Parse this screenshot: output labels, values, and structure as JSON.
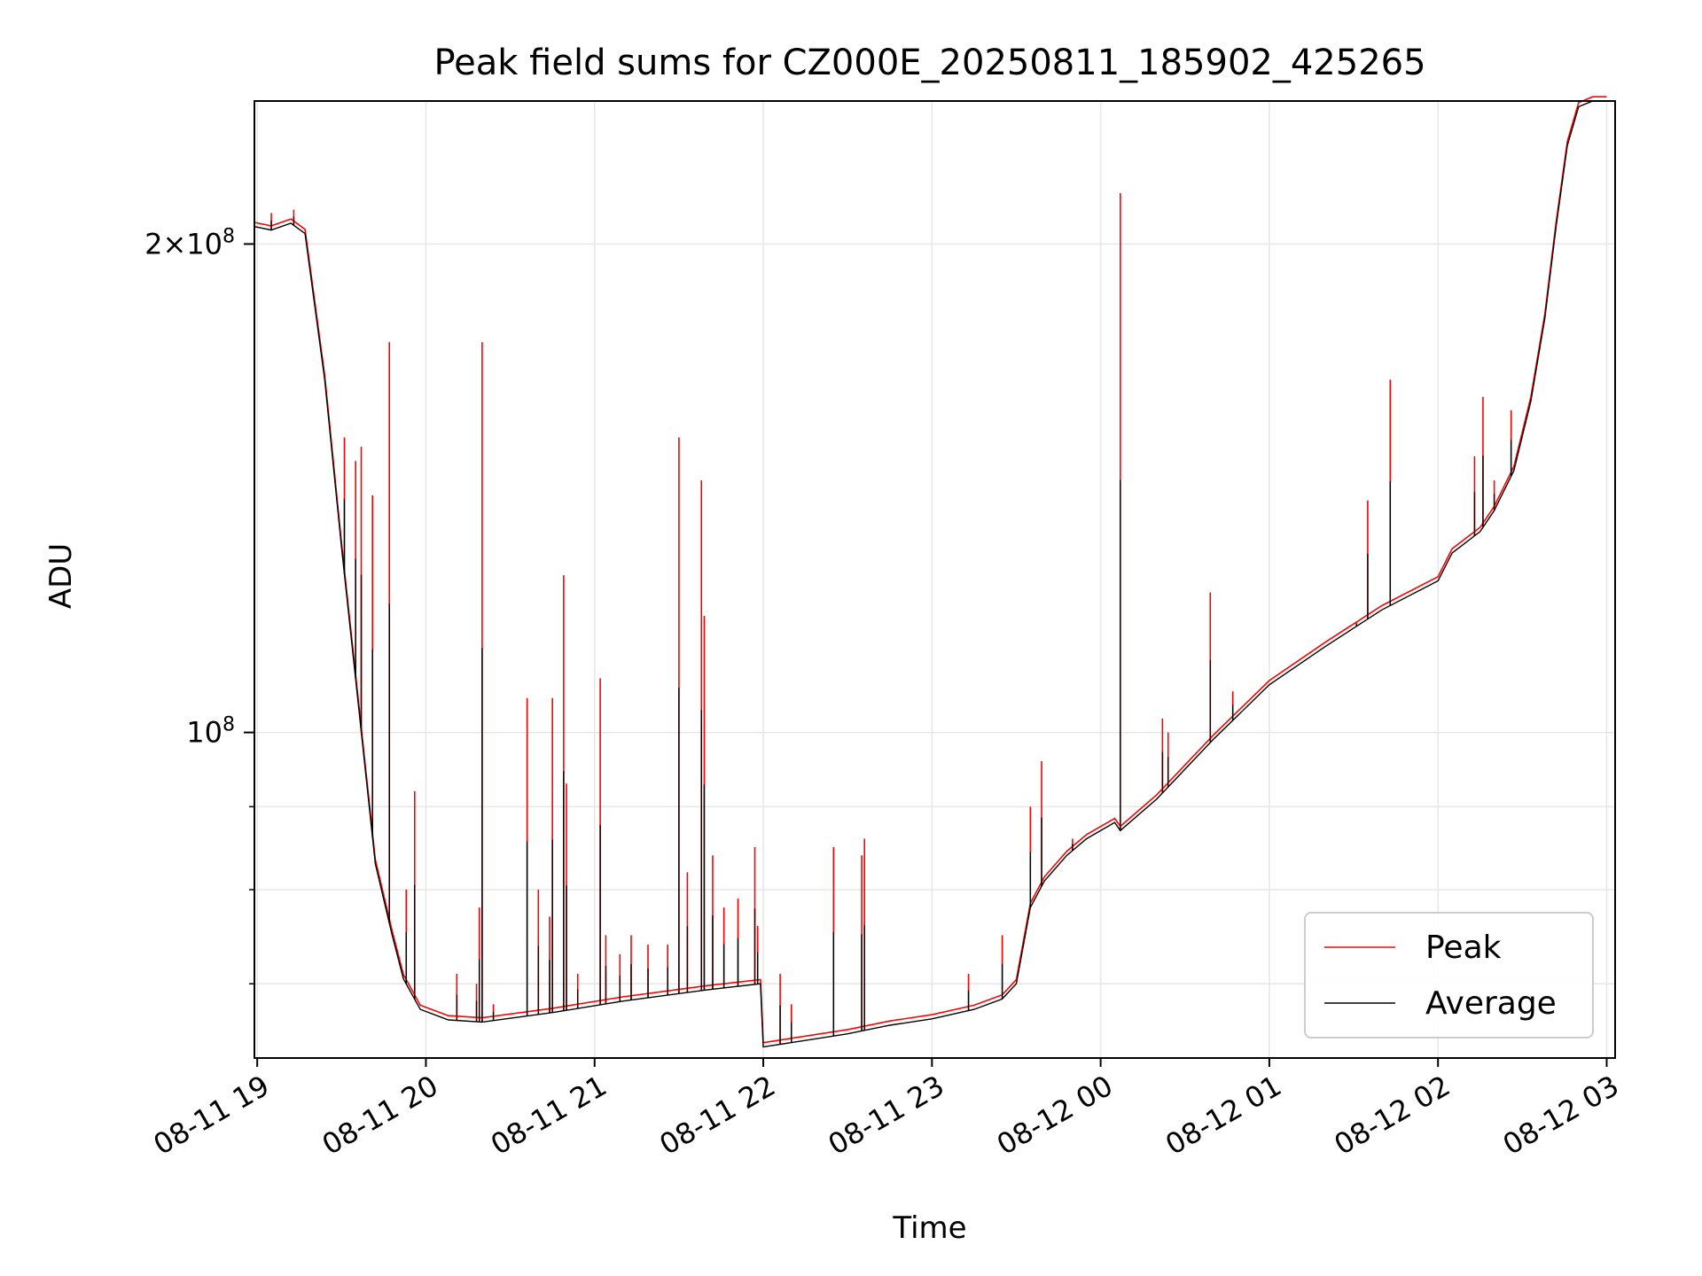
{
  "chart_data": {
    "type": "line",
    "title": "Peak field sums for CZ000E_20250811_185902_425265",
    "xlabel": "Time",
    "ylabel": "ADU",
    "y_scale": "log",
    "xlim": [
      "2025-08-11T18:59",
      "2025-08-12T03:03"
    ],
    "ylim": [
      63000000,
      245000000
    ],
    "x_ticks": [
      "08-11 19",
      "08-11 20",
      "08-11 21",
      "08-11 22",
      "08-11 23",
      "08-12 00",
      "08-12 01",
      "08-12 02",
      "08-12 03"
    ],
    "y_ticks": [
      {
        "value": 200000000,
        "mant": "2",
        "exp": "8"
      },
      {
        "value": 100000000,
        "mant": "",
        "exp": "8"
      }
    ],
    "grid": true,
    "legend": {
      "placement": "lower-right",
      "entries": [
        "Peak",
        "Average"
      ]
    },
    "colors": {
      "Peak": "#ff0000",
      "Average": "#000000",
      "grid": "#e6e6e6"
    },
    "series": [
      {
        "name": "Average",
        "color": "#000000",
        "points": [
          [
            "2025-08-11T18:59",
            205000000
          ],
          [
            "2025-08-11T19:05",
            204000000
          ],
          [
            "2025-08-11T19:12",
            206000000
          ],
          [
            "2025-08-11T19:17",
            203000000
          ],
          [
            "2025-08-11T19:24",
            165000000
          ],
          [
            "2025-08-11T19:30",
            130000000
          ],
          [
            "2025-08-11T19:36",
            104000000
          ],
          [
            "2025-08-11T19:42",
            83000000
          ],
          [
            "2025-08-11T19:48",
            75000000
          ],
          [
            "2025-08-11T19:52",
            70500000
          ],
          [
            "2025-08-11T19:58",
            67500000
          ],
          [
            "2025-08-11T20:08",
            66500000
          ],
          [
            "2025-08-11T20:20",
            66300000
          ],
          [
            "2025-08-11T20:45",
            67200000
          ],
          [
            "2025-08-11T21:10",
            68300000
          ],
          [
            "2025-08-11T21:40",
            69400000
          ],
          [
            "2025-08-11T21:59",
            70000000
          ],
          [
            "2025-08-11T22:00",
            64000000
          ],
          [
            "2025-08-11T22:30",
            65200000
          ],
          [
            "2025-08-11T22:45",
            66000000
          ],
          [
            "2025-08-11T23:00",
            66600000
          ],
          [
            "2025-08-11T23:15",
            67500000
          ],
          [
            "2025-08-11T23:25",
            68500000
          ],
          [
            "2025-08-11T23:30",
            70000000
          ],
          [
            "2025-08-11T23:35",
            78000000
          ],
          [
            "2025-08-11T23:40",
            81000000
          ],
          [
            "2025-08-11T23:48",
            84000000
          ],
          [
            "2025-08-11T23:55",
            86000000
          ],
          [
            "2025-08-12T00:05",
            88000000
          ],
          [
            "2025-08-12T00:07",
            87000000
          ],
          [
            "2025-08-12T00:20",
            91000000
          ],
          [
            "2025-08-12T00:40",
            99000000
          ],
          [
            "2025-08-12T01:00",
            107000000
          ],
          [
            "2025-08-12T01:20",
            113000000
          ],
          [
            "2025-08-12T01:40",
            119000000
          ],
          [
            "2025-08-12T02:00",
            124000000
          ],
          [
            "2025-08-12T02:05",
            129000000
          ],
          [
            "2025-08-12T02:15",
            133000000
          ],
          [
            "2025-08-12T02:20",
            137000000
          ],
          [
            "2025-08-12T02:27",
            145000000
          ],
          [
            "2025-08-12T02:33",
            160000000
          ],
          [
            "2025-08-12T02:38",
            180000000
          ],
          [
            "2025-08-12T02:42",
            205000000
          ],
          [
            "2025-08-12T02:46",
            230000000
          ],
          [
            "2025-08-12T02:50",
            243000000
          ],
          [
            "2025-08-12T02:55",
            245000000
          ],
          [
            "2025-08-12T03:00",
            245000000
          ]
        ]
      },
      {
        "name": "Peak",
        "color": "#ff0000",
        "spikes": [
          [
            "2025-08-11T19:05",
            209000000
          ],
          [
            "2025-08-11T19:13",
            210000000
          ],
          [
            "2025-08-11T19:31",
            152000000
          ],
          [
            "2025-08-11T19:35",
            147000000
          ],
          [
            "2025-08-11T19:37",
            150000000
          ],
          [
            "2025-08-11T19:41",
            140000000
          ],
          [
            "2025-08-11T19:47",
            174000000
          ],
          [
            "2025-08-11T19:53",
            80000000
          ],
          [
            "2025-08-11T19:56",
            92000000
          ],
          [
            "2025-08-11T20:11",
            71000000
          ],
          [
            "2025-08-11T20:18",
            70000000
          ],
          [
            "2025-08-11T20:19",
            78000000
          ],
          [
            "2025-08-11T20:20",
            174000000
          ],
          [
            "2025-08-11T20:24",
            68000000
          ],
          [
            "2025-08-11T20:36",
            105000000
          ],
          [
            "2025-08-11T20:40",
            80000000
          ],
          [
            "2025-08-11T20:44",
            77000000
          ],
          [
            "2025-08-11T20:45",
            105000000
          ],
          [
            "2025-08-11T20:49",
            125000000
          ],
          [
            "2025-08-11T20:50",
            93000000
          ],
          [
            "2025-08-11T20:54",
            71000000
          ],
          [
            "2025-08-11T21:02",
            108000000
          ],
          [
            "2025-08-11T21:04",
            75000000
          ],
          [
            "2025-08-11T21:09",
            73000000
          ],
          [
            "2025-08-11T21:13",
            75000000
          ],
          [
            "2025-08-11T21:19",
            74000000
          ],
          [
            "2025-08-11T21:26",
            74000000
          ],
          [
            "2025-08-11T21:30",
            152000000
          ],
          [
            "2025-08-11T21:33",
            82000000
          ],
          [
            "2025-08-11T21:38",
            143000000
          ],
          [
            "2025-08-11T21:39",
            118000000
          ],
          [
            "2025-08-11T21:42",
            84000000
          ],
          [
            "2025-08-11T21:46",
            78000000
          ],
          [
            "2025-08-11T21:51",
            79000000
          ],
          [
            "2025-08-11T21:57",
            85000000
          ],
          [
            "2025-08-11T21:58",
            76000000
          ],
          [
            "2025-08-11T22:06",
            71000000
          ],
          [
            "2025-08-11T22:10",
            68000000
          ],
          [
            "2025-08-11T22:25",
            85000000
          ],
          [
            "2025-08-11T22:35",
            84000000
          ],
          [
            "2025-08-11T22:36",
            86000000
          ],
          [
            "2025-08-11T23:13",
            71000000
          ],
          [
            "2025-08-11T23:25",
            75000000
          ],
          [
            "2025-08-11T23:35",
            90000000
          ],
          [
            "2025-08-11T23:39",
            96000000
          ],
          [
            "2025-08-11T23:50",
            86000000
          ],
          [
            "2025-08-12T00:07",
            215000000
          ],
          [
            "2025-08-12T00:22",
            102000000
          ],
          [
            "2025-08-12T00:24",
            100000000
          ],
          [
            "2025-08-12T00:39",
            122000000
          ],
          [
            "2025-08-12T00:47",
            106000000
          ],
          [
            "2025-08-12T01:31",
            117000000
          ],
          [
            "2025-08-12T01:35",
            139000000
          ],
          [
            "2025-08-12T01:43",
            165000000
          ],
          [
            "2025-08-12T02:13",
            148000000
          ],
          [
            "2025-08-12T02:16",
            161000000
          ],
          [
            "2025-08-12T02:20",
            143000000
          ],
          [
            "2025-08-12T02:26",
            158000000
          ]
        ]
      }
    ]
  }
}
